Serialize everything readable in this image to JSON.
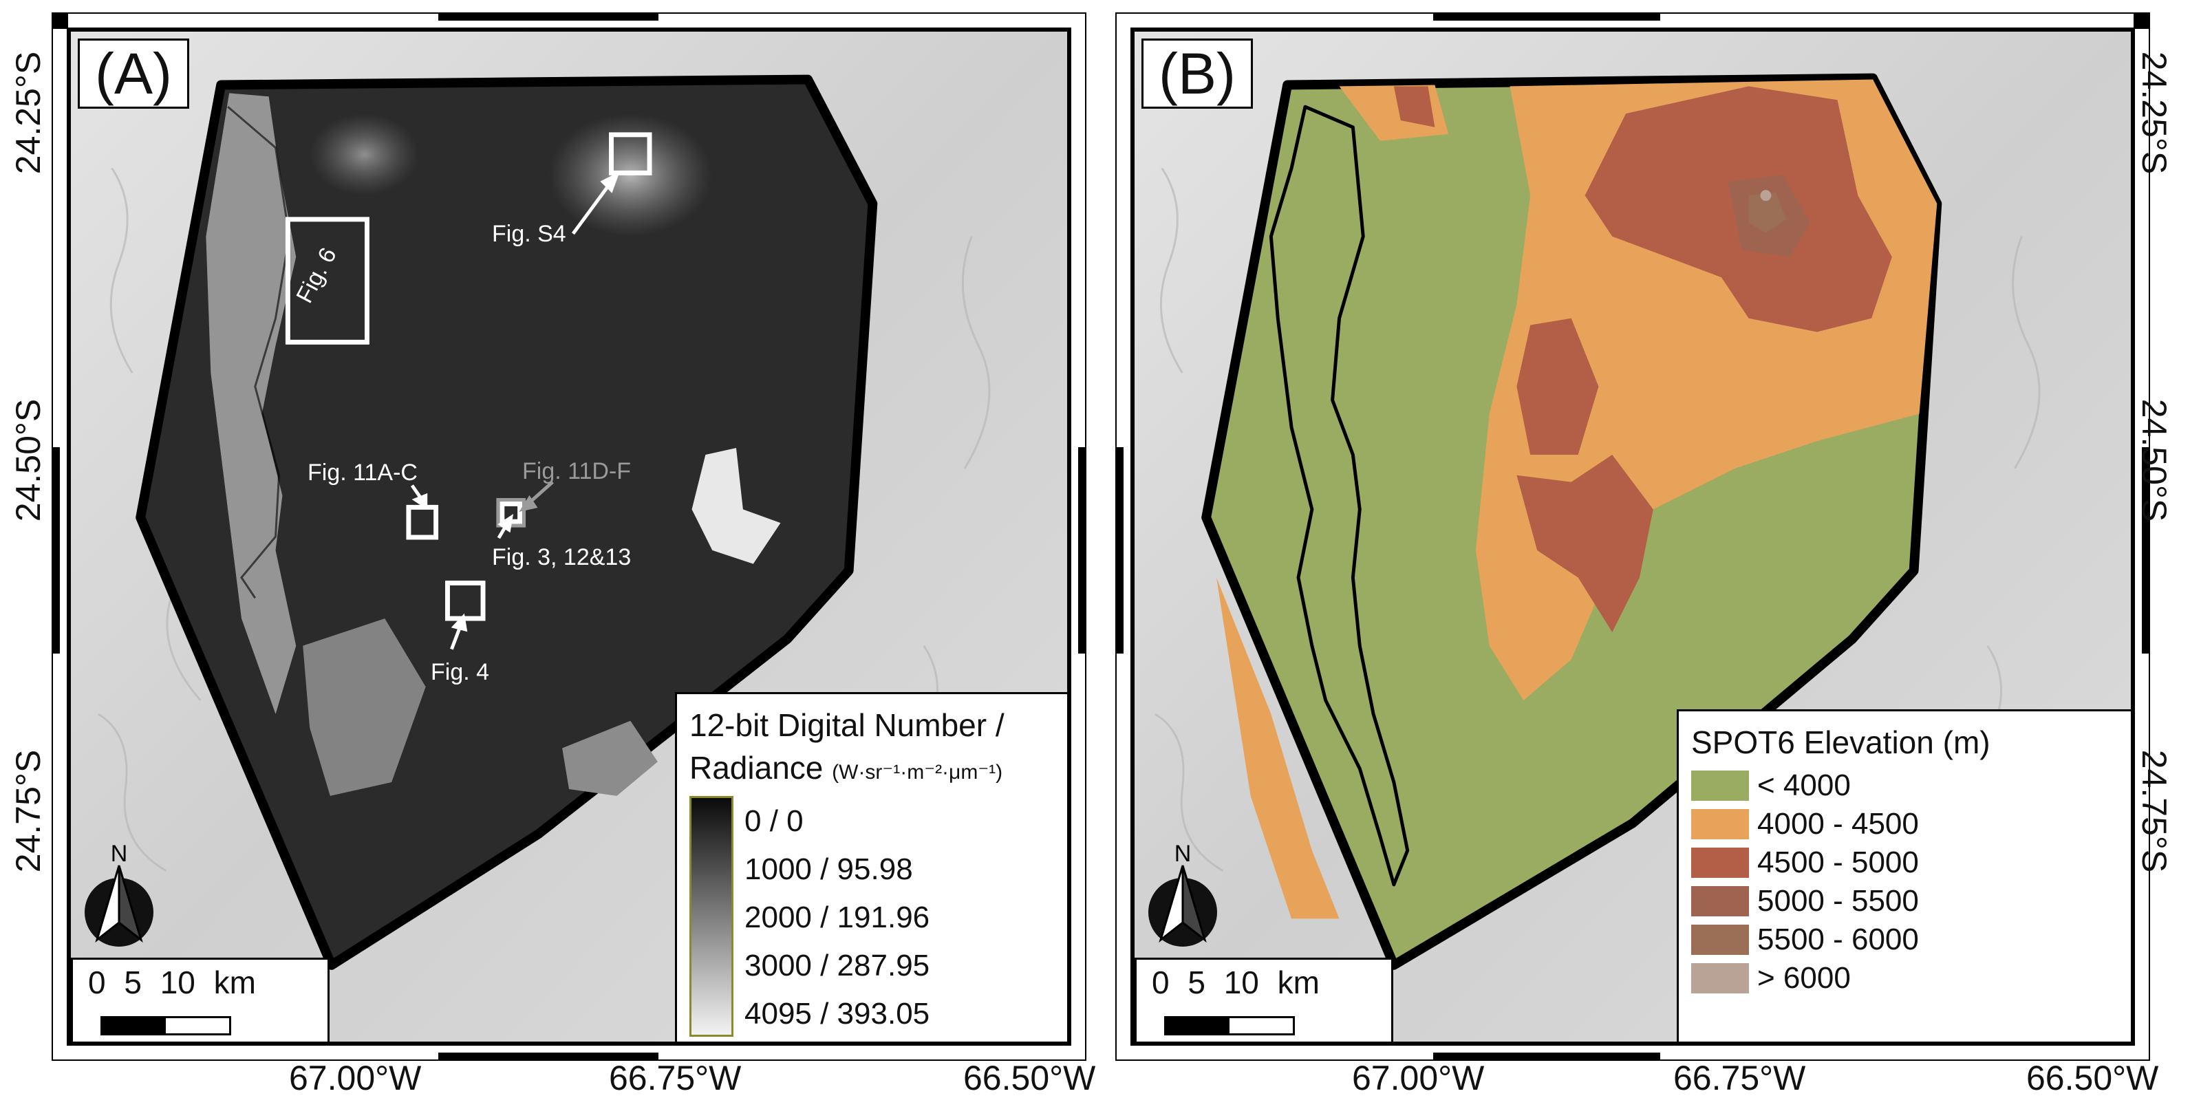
{
  "panels": {
    "a": {
      "label": "(A)",
      "callouts": {
        "fig_s4": "Fig. S4",
        "fig_6": "Fig. 6",
        "fig_11ac": "Fig. 11A-C",
        "fig_11df": "Fig. 11D-F",
        "fig_3_12_13": "Fig. 3, 12&13",
        "fig_4": "Fig. 4"
      },
      "legend": {
        "title_line1": "12-bit Digital Number /",
        "title_line2": "Radiance",
        "unit": "(W·sr⁻¹·m⁻²·μm⁻¹)",
        "ticks": [
          "0 / 0",
          "1000 / 95.98",
          "2000 / 191.96",
          "3000 / 287.95",
          "4095 / 393.05"
        ],
        "ramp_colors": [
          "#0a0a0a",
          "#f2f2f2"
        ],
        "border_color": "#8a8a2a"
      },
      "scale_bar": {
        "text": "0   5   10 km",
        "unit": "km"
      },
      "north_arrow": {
        "label": "N",
        "icon": "north-arrow-icon"
      }
    },
    "b": {
      "label": "(B)",
      "legend": {
        "title": "SPOT6 Elevation (m)",
        "classes": [
          {
            "label": "< 4000",
            "color": "#9aab62"
          },
          {
            "label": "4000 - 4500",
            "color": "#e8a35a"
          },
          {
            "label": "4500 - 5000",
            "color": "#b35e46"
          },
          {
            "label": "5000 - 5500",
            "color": "#9e6450"
          },
          {
            "label": "5500 - 6000",
            "color": "#9a6f55"
          },
          {
            "label": "> 6000",
            "color": "#b9a396"
          }
        ]
      },
      "scale_bar": {
        "text": "0   5   10 km",
        "unit": "km"
      },
      "north_arrow": {
        "label": "N",
        "icon": "north-arrow-icon"
      }
    }
  },
  "axes": {
    "latitudes": [
      "24.25°S",
      "24.50°S",
      "24.75°S"
    ],
    "longitudes": [
      "67.00°W",
      "66.75°W",
      "66.50°W"
    ]
  },
  "colors": {
    "hillshade": "#d6d6d6",
    "image_dark": "#2a2a2a",
    "boundary": "#000000",
    "callout_box": "#ffffff",
    "callout_gray": "#9a9a9a"
  }
}
